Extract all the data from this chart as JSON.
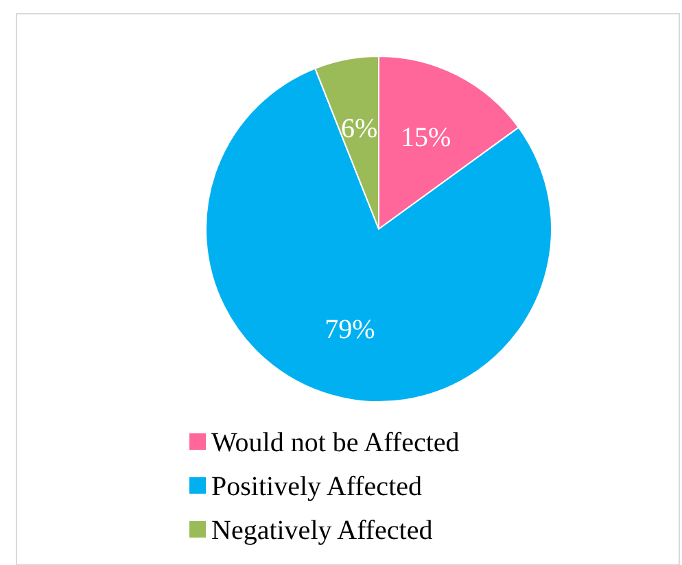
{
  "chart_data": {
    "type": "pie",
    "categories": [
      "Would not be Affected",
      "Positively Affected",
      "Negatively Affected"
    ],
    "values": [
      15,
      79,
      6
    ],
    "colors": [
      "#ff6699",
      "#00b0f0",
      "#9bbb59"
    ],
    "value_labels": [
      "15%",
      "79%",
      "6%"
    ],
    "legend": "bottom"
  }
}
